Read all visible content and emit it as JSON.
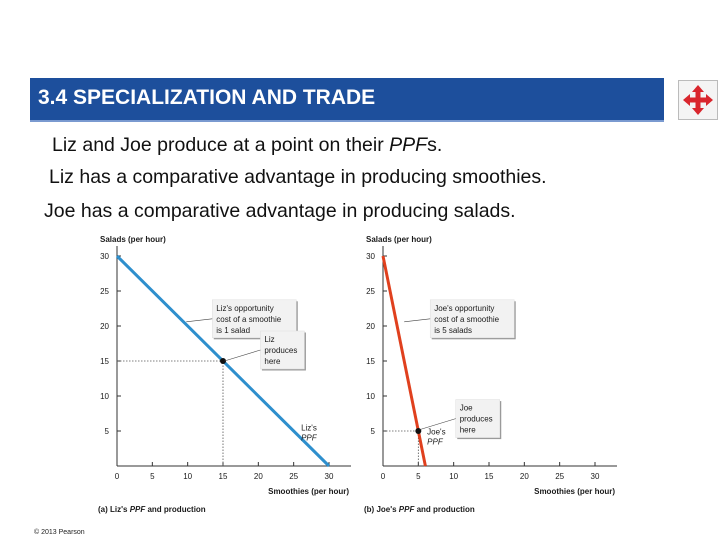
{
  "header": {
    "title": "3.4  SPECIALIZATION AND TRADE",
    "nav_icon": "move-arrows-icon"
  },
  "bullets": [
    "Liz and Joe produce at a point on their PPFs.",
    "Liz has a comparative advantage in producing smoothies.",
    "Joe has a comparative advantage in producing salads."
  ],
  "chart_data": [
    {
      "type": "line",
      "caption_prefix": "(a) Liz's ",
      "caption_italic": "PPF",
      "caption_suffix": " and production",
      "ylabel": "Salads (per hour)",
      "xlabel": "Smoothies (per hour)",
      "xlim": [
        0,
        30
      ],
      "ylim": [
        0,
        30
      ],
      "xticks": [
        0,
        5,
        10,
        15,
        20,
        25,
        30
      ],
      "yticks": [
        5,
        10,
        15,
        20,
        25,
        30
      ],
      "series": [
        {
          "name": "Liz's PPF",
          "x": [
            0,
            30
          ],
          "y": [
            30,
            0
          ],
          "color": "#2e8fcd"
        }
      ],
      "point": {
        "x": 15,
        "y": 15
      },
      "annotations": [
        {
          "lines": [
            "Liz's opportunity",
            "cost of a smoothie",
            "is 1 salad"
          ],
          "data_x": 9.8,
          "data_y": 20.6,
          "kind": "box"
        },
        {
          "lines": [
            "Liz",
            "produces",
            "here"
          ],
          "data_x": 15.2,
          "data_y": 15.0,
          "kind": "box"
        },
        {
          "lines": [
            "Liz's",
            "PPF"
          ],
          "data_x": 25.2,
          "data_y": 4.8,
          "kind": "label"
        }
      ],
      "grid": false
    },
    {
      "type": "line",
      "caption_prefix": "(b) Joe's ",
      "caption_italic": "PPF",
      "caption_suffix": " and production",
      "ylabel": "Salads (per hour)",
      "xlabel": "Smoothies (per hour)",
      "xlim": [
        0,
        30
      ],
      "ylim": [
        0,
        30
      ],
      "xticks": [
        0,
        5,
        10,
        15,
        20,
        25,
        30
      ],
      "yticks": [
        5,
        10,
        15,
        20,
        25,
        30
      ],
      "series": [
        {
          "name": "Joe's PPF",
          "x": [
            0,
            6
          ],
          "y": [
            30,
            0
          ],
          "color": "#e0401e"
        }
      ],
      "point": {
        "x": 5,
        "y": 5
      },
      "annotations": [
        {
          "lines": [
            "Joe's opportunity",
            "cost of a smoothie",
            "is 5 salads"
          ],
          "data_x": 3.0,
          "data_y": 20.6,
          "kind": "box"
        },
        {
          "lines": [
            "Joe",
            "produces",
            "here"
          ],
          "data_x": 5.2,
          "data_y": 5.2,
          "kind": "box"
        },
        {
          "lines": [
            "Joe's",
            "PPF"
          ],
          "data_x": 5.4,
          "data_y": 4.2,
          "kind": "label"
        }
      ],
      "grid": false
    }
  ],
  "footer": {
    "copyright": "© 2013 Pearson"
  }
}
